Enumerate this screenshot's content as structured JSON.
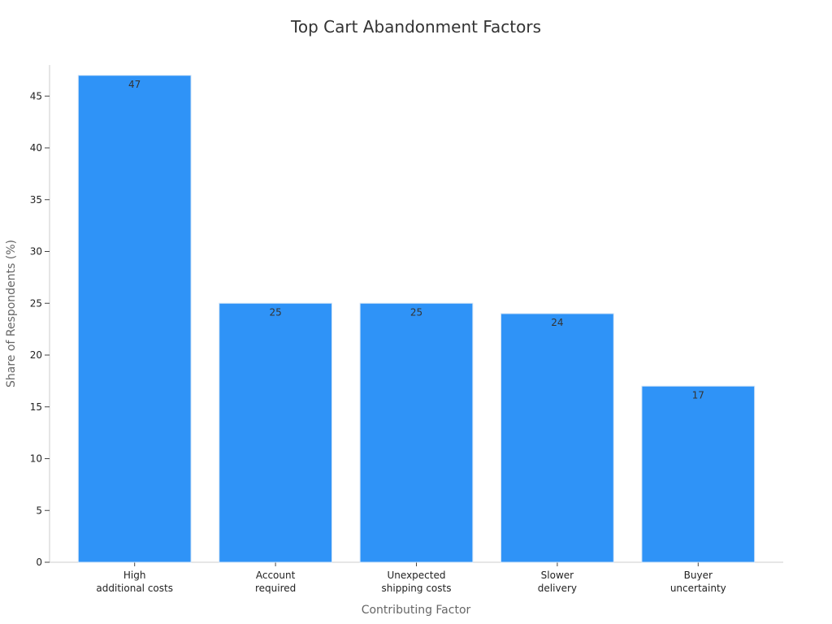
{
  "chart_data": {
    "type": "bar",
    "title": "Top Cart Abandonment Factors",
    "xlabel": "Contributing Factor",
    "ylabel": "Share of Respondents (%)",
    "categories": [
      [
        "High",
        "additional costs"
      ],
      [
        "Account",
        "required"
      ],
      [
        "Unexpected",
        "shipping costs"
      ],
      [
        "Slower",
        "delivery"
      ],
      [
        "Buyer",
        "uncertainty"
      ]
    ],
    "values": [
      47,
      25,
      25,
      24,
      17
    ],
    "ylim": [
      0,
      48
    ],
    "yticks": [
      0,
      5,
      10,
      15,
      20,
      25,
      30,
      35,
      40,
      45
    ],
    "grid": false,
    "legend": "none",
    "bar_color": "#2f93f7"
  }
}
